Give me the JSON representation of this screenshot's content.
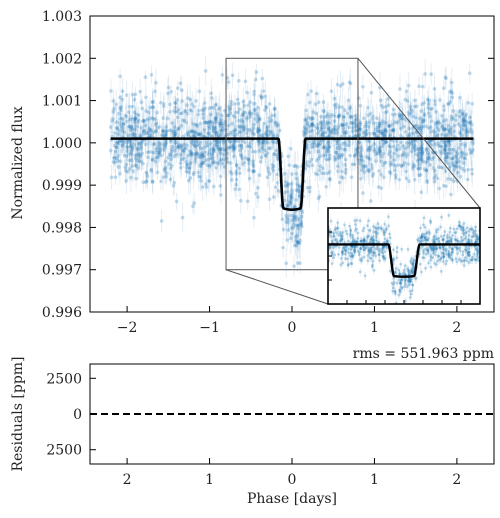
{
  "chart_data": [
    {
      "type": "scatter",
      "panel": "main",
      "xlim": [
        -2.45,
        2.45
      ],
      "ylim": [
        0.996,
        1.003
      ],
      "ylabel": "Normalized flux",
      "xticks": [
        -2,
        -1,
        0,
        1,
        2
      ],
      "xtick_labels": [
        "−2",
        "−1",
        "0",
        "1",
        "2"
      ],
      "yticks": [
        0.996,
        0.997,
        0.998,
        0.999,
        1.0,
        1.001,
        1.002,
        1.003
      ],
      "ytick_labels": [
        "0.996",
        "0.997",
        "0.998",
        "0.999",
        "1.000",
        "1.001",
        "1.002",
        "1.003"
      ],
      "data_color": "#1f77b4",
      "model_color": "#000000",
      "model": {
        "baseline": 1.0001,
        "transit_center": 0.0,
        "transit_duration": 0.33,
        "ingress_width": 0.06,
        "depth": 0.00168,
        "x": [
          -2.2,
          -0.25,
          -0.15,
          -0.1,
          -0.05,
          0.0,
          0.05,
          0.1,
          0.15,
          0.25,
          2.2
        ],
        "y": [
          1.0001,
          1.0001,
          0.9999,
          0.9987,
          0.9985,
          0.99842,
          0.9985,
          0.9987,
          0.9999,
          1.0001,
          1.0001
        ]
      },
      "scatter_in_ppm": 551.963,
      "inset": {
        "xlim": [
          -0.8,
          0.8
        ],
        "ylim": [
          0.997,
          1.002
        ],
        "label": "zoom"
      }
    },
    {
      "type": "line",
      "panel": "residuals",
      "xlabel": "Phase [days]",
      "ylabel": "Residuals [ppm]",
      "annotation": "rms = 551.963 ppm",
      "xticks": [
        -2,
        -1,
        0,
        1,
        2
      ],
      "xtick_labels": [
        "2",
        "1",
        "0",
        "1",
        "2"
      ],
      "yticks": [
        2500,
        0,
        -2500
      ],
      "ytick_labels": [
        "2500",
        "0",
        "2500"
      ],
      "ylim": [
        -3500,
        3500
      ],
      "zero_line_style": "dashed"
    }
  ]
}
